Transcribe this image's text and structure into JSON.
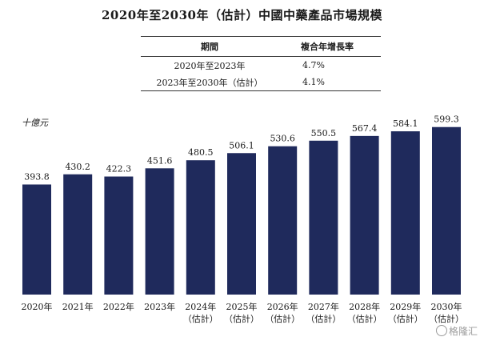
{
  "title": "2020年至2030年（估計）中國中藥產品市場規模",
  "cagr_table": {
    "headers": [
      "期間",
      "複合年增長率"
    ],
    "rows": [
      {
        "period": "2020年至2023年",
        "rate": "4.7%"
      },
      {
        "period": "2023年至2030年（估計）",
        "rate": "4.1%"
      }
    ]
  },
  "watermark": "格隆汇",
  "chart_data": {
    "type": "bar",
    "title": "2020年至2030年（估計）中國中藥產品市場規模",
    "ylabel": "十億元",
    "xlabel": "",
    "categories": [
      [
        "2020年"
      ],
      [
        "2021年"
      ],
      [
        "2022年"
      ],
      [
        "2023年"
      ],
      [
        "2024年",
        "（估計）"
      ],
      [
        "2025年",
        "（估計）"
      ],
      [
        "2026年",
        "（估計）"
      ],
      [
        "2027年",
        "（估計）"
      ],
      [
        "2028年",
        "（估計）"
      ],
      [
        "2029年",
        "（估計）"
      ],
      [
        "2030年",
        "（估計）"
      ]
    ],
    "values": [
      393.8,
      430.2,
      422.3,
      451.6,
      480.5,
      506.1,
      530.6,
      550.5,
      567.4,
      584.1,
      599.3
    ],
    "value_labels": [
      "393.8",
      "430.2",
      "422.3",
      "451.6",
      "480.5",
      "506.1",
      "530.6",
      "550.5",
      "567.4",
      "584.1",
      "599.3"
    ],
    "ylim": [
      0,
      630
    ],
    "bar_color": "#1f2a5c",
    "grid": false,
    "legend": "none"
  }
}
